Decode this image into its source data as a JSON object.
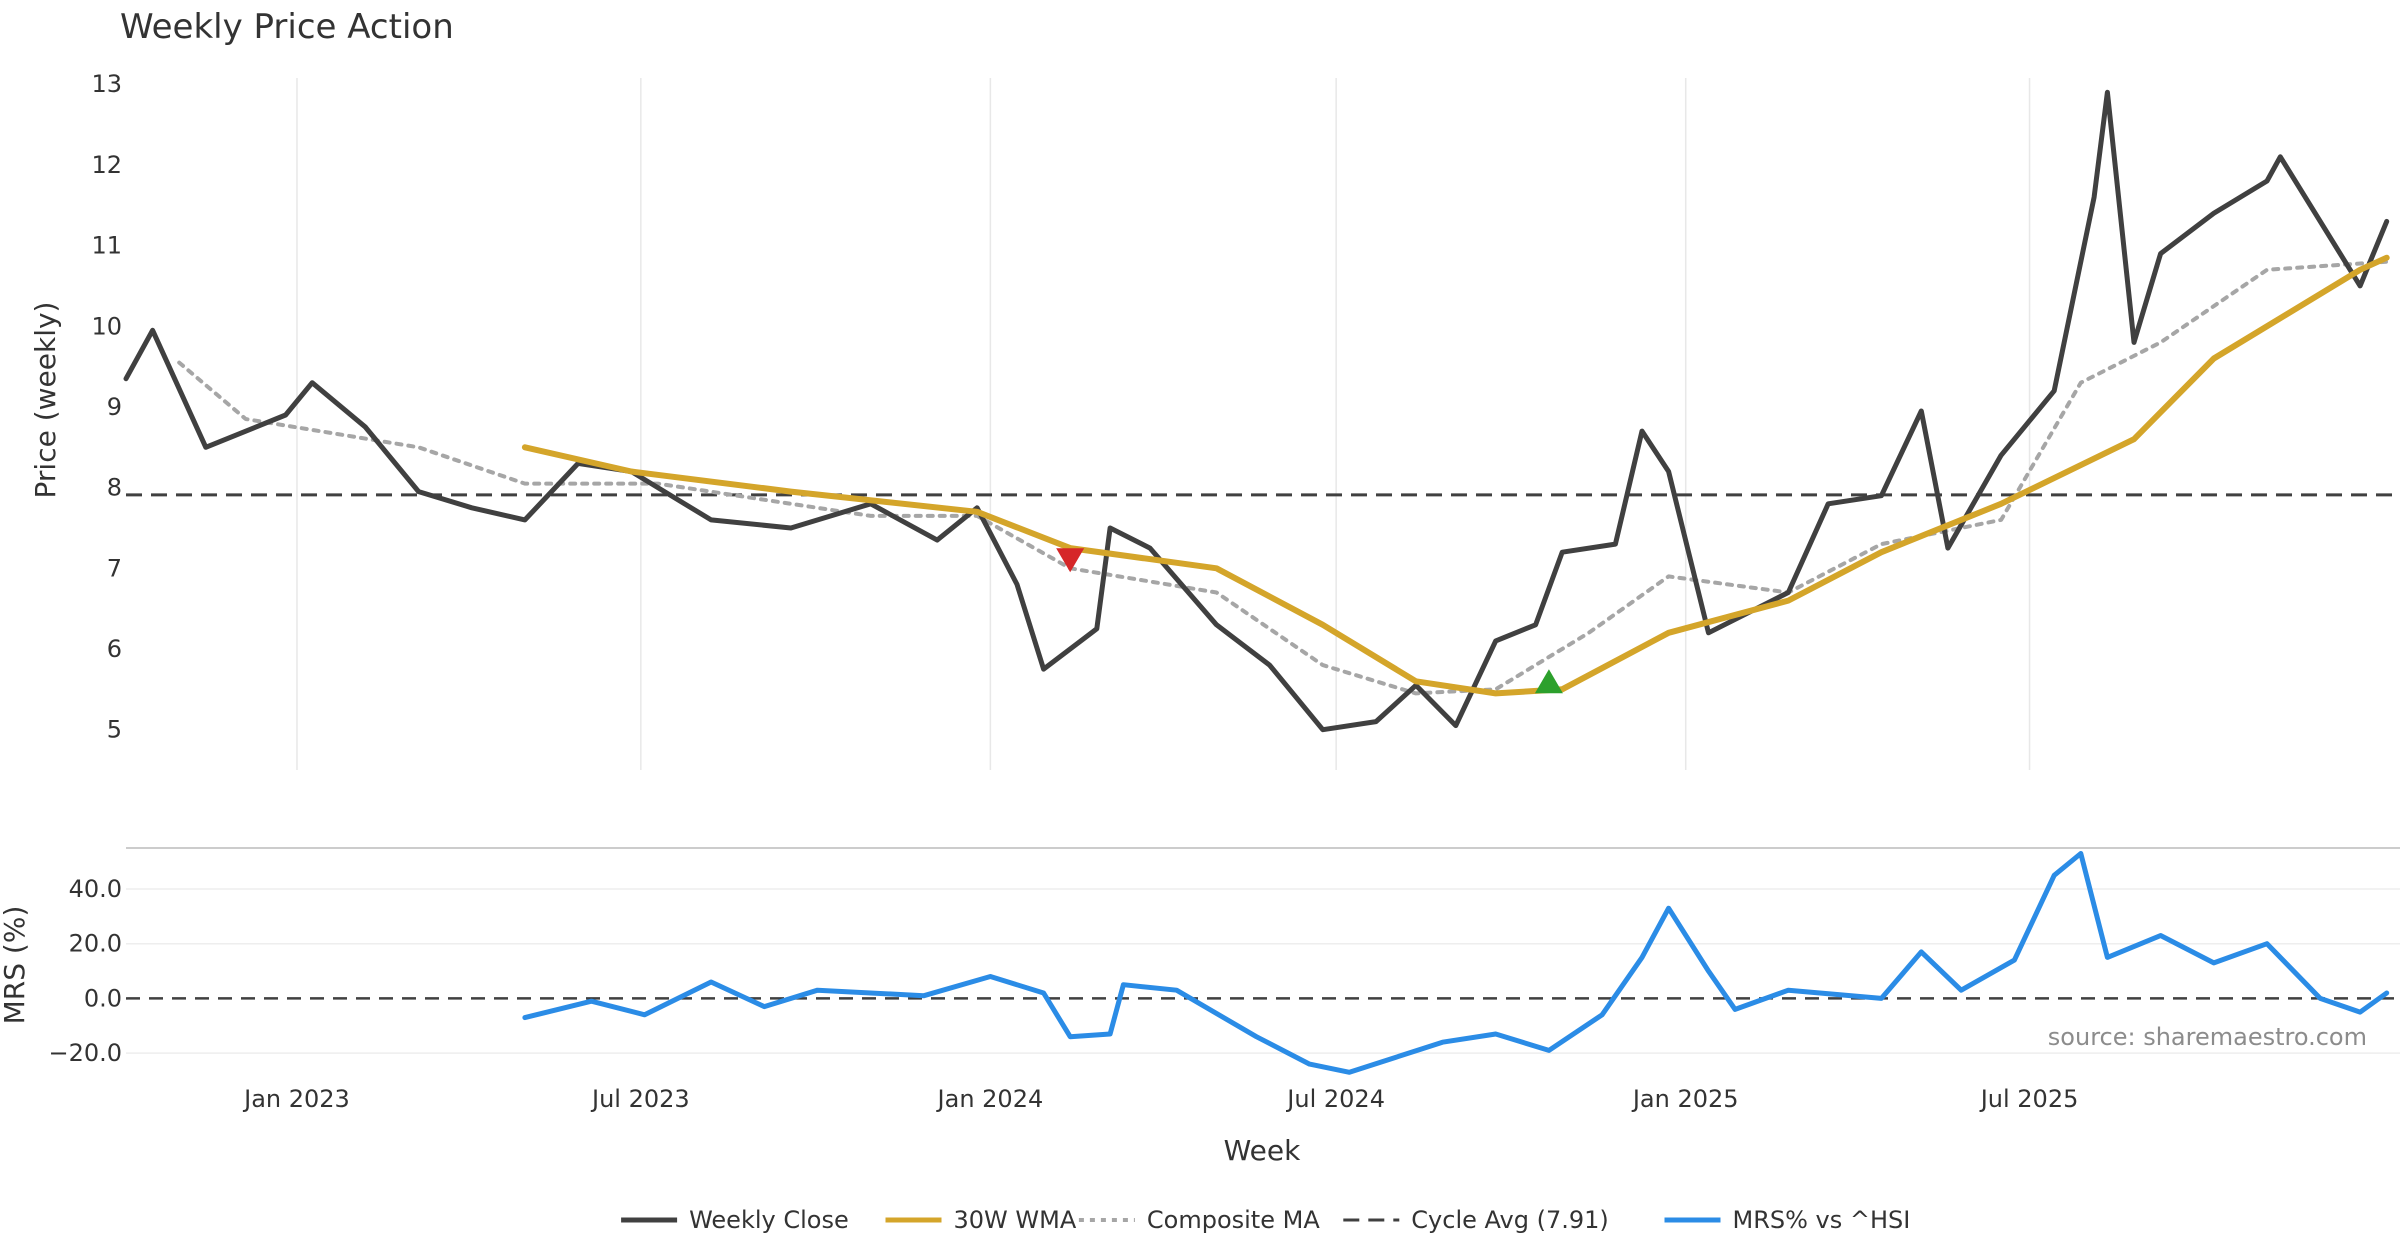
{
  "chart_data": [
    {
      "type": "line",
      "title": "Weekly Price Action",
      "xlabel": "",
      "ylabel": "Price (weekly)",
      "ylim": [
        4.5,
        13.3
      ],
      "yticks": [
        5,
        6,
        7,
        8,
        9,
        10,
        11,
        12,
        13
      ],
      "grid": "vertical",
      "reference_line": {
        "name": "Cycle Avg (7.91)",
        "value": 7.91
      },
      "markers": [
        {
          "type": "sell",
          "symbol": "down-triangle",
          "color": "#d62728",
          "date": "2024-02-12",
          "value": 7.1
        },
        {
          "type": "buy",
          "symbol": "up-triangle",
          "color": "#2ca02c",
          "date": "2024-10-21",
          "value": 5.6
        }
      ],
      "series": [
        {
          "name": "Weekly Close",
          "color": "#404040",
          "points": [
            [
              "2022-10-03",
              9.35
            ],
            [
              "2022-10-17",
              9.95
            ],
            [
              "2022-11-14",
              8.5
            ],
            [
              "2022-12-26",
              8.9
            ],
            [
              "2023-01-09",
              9.3
            ],
            [
              "2023-02-06",
              8.75
            ],
            [
              "2023-03-06",
              7.95
            ],
            [
              "2023-04-03",
              7.75
            ],
            [
              "2023-05-01",
              7.6
            ],
            [
              "2023-05-29",
              8.3
            ],
            [
              "2023-06-26",
              8.2
            ],
            [
              "2023-08-07",
              7.6
            ],
            [
              "2023-09-18",
              7.5
            ],
            [
              "2023-10-30",
              7.8
            ],
            [
              "2023-12-04",
              7.35
            ],
            [
              "2023-12-25",
              7.75
            ],
            [
              "2024-01-15",
              6.8
            ],
            [
              "2024-01-29",
              5.75
            ],
            [
              "2024-02-26",
              6.25
            ],
            [
              "2024-03-04",
              7.5
            ],
            [
              "2024-03-25",
              7.25
            ],
            [
              "2024-04-29",
              6.3
            ],
            [
              "2024-05-27",
              5.8
            ],
            [
              "2024-06-24",
              5.0
            ],
            [
              "2024-07-22",
              5.1
            ],
            [
              "2024-08-12",
              5.55
            ],
            [
              "2024-09-02",
              5.05
            ],
            [
              "2024-09-23",
              6.1
            ],
            [
              "2024-10-14",
              6.3
            ],
            [
              "2024-10-28",
              7.2
            ],
            [
              "2024-11-25",
              7.3
            ],
            [
              "2024-12-09",
              8.7
            ],
            [
              "2024-12-23",
              8.2
            ],
            [
              "2025-01-13",
              6.2
            ],
            [
              "2025-02-24",
              6.7
            ],
            [
              "2025-03-17",
              7.8
            ],
            [
              "2025-04-14",
              7.9
            ],
            [
              "2025-05-05",
              8.95
            ],
            [
              "2025-05-19",
              7.25
            ],
            [
              "2025-06-16",
              8.4
            ],
            [
              "2025-07-14",
              9.2
            ],
            [
              "2025-08-04",
              11.6
            ],
            [
              "2025-08-11",
              12.9
            ],
            [
              "2025-08-25",
              9.8
            ],
            [
              "2025-09-08",
              10.9
            ],
            [
              "2025-10-06",
              11.4
            ],
            [
              "2025-11-03",
              11.8
            ],
            [
              "2025-11-10",
              12.1
            ],
            [
              "2025-12-22",
              10.5
            ],
            [
              "2026-01-05",
              11.3
            ]
          ]
        },
        {
          "name": "30W WMA",
          "color": "#d4a52a",
          "points": [
            [
              "2023-05-01",
              8.5
            ],
            [
              "2023-06-26",
              8.2
            ],
            [
              "2023-09-18",
              7.95
            ],
            [
              "2023-12-25",
              7.7
            ],
            [
              "2024-02-12",
              7.25
            ],
            [
              "2024-04-29",
              7.0
            ],
            [
              "2024-06-24",
              6.3
            ],
            [
              "2024-08-12",
              5.6
            ],
            [
              "2024-09-23",
              5.45
            ],
            [
              "2024-10-28",
              5.5
            ],
            [
              "2024-12-23",
              6.2
            ],
            [
              "2025-02-24",
              6.6
            ],
            [
              "2025-04-14",
              7.2
            ],
            [
              "2025-06-16",
              7.8
            ],
            [
              "2025-08-25",
              8.6
            ],
            [
              "2025-10-06",
              9.6
            ],
            [
              "2025-12-22",
              10.7
            ],
            [
              "2026-01-05",
              10.85
            ]
          ]
        },
        {
          "name": "Composite MA",
          "color": "#a6a6a6",
          "points": [
            [
              "2022-10-31",
              9.55
            ],
            [
              "2022-12-05",
              8.85
            ],
            [
              "2023-03-06",
              8.5
            ],
            [
              "2023-05-01",
              8.05
            ],
            [
              "2023-07-10",
              8.05
            ],
            [
              "2023-10-30",
              7.65
            ],
            [
              "2023-12-25",
              7.65
            ],
            [
              "2024-02-12",
              7.0
            ],
            [
              "2024-04-29",
              6.7
            ],
            [
              "2024-06-24",
              5.8
            ],
            [
              "2024-08-12",
              5.45
            ],
            [
              "2024-09-23",
              5.5
            ],
            [
              "2024-11-11",
              6.2
            ],
            [
              "2024-12-23",
              6.9
            ],
            [
              "2025-02-24",
              6.7
            ],
            [
              "2025-04-14",
              7.3
            ],
            [
              "2025-06-16",
              7.6
            ],
            [
              "2025-07-28",
              9.3
            ],
            [
              "2025-09-08",
              9.8
            ],
            [
              "2025-11-03",
              10.7
            ],
            [
              "2026-01-05",
              10.8
            ]
          ]
        }
      ]
    },
    {
      "type": "line",
      "xlabel": "Week",
      "ylabel": "MRS (%)",
      "ylim": [
        -28,
        55
      ],
      "yticks": [
        -20.0,
        0.0,
        20.0,
        40.0
      ],
      "ytick_labels": [
        "−20.0",
        "0.0",
        "20.0",
        "40.0"
      ],
      "xticks": [
        "2023-01-01",
        "2023-07-01",
        "2024-01-01",
        "2024-07-01",
        "2025-01-01",
        "2025-07-01"
      ],
      "xtick_labels": [
        "Jan 2023",
        "Jul 2023",
        "Jan 2024",
        "Jul 2024",
        "Jan 2025",
        "Jul 2025"
      ],
      "reference_line": {
        "value": 0
      },
      "annotation": "source: sharemaestro.com",
      "series": [
        {
          "name": "MRS% vs ^HSI",
          "color": "#2b8ce6",
          "points": [
            [
              "2023-05-01",
              -7
            ],
            [
              "2023-06-05",
              -1
            ],
            [
              "2023-07-03",
              -6
            ],
            [
              "2023-08-07",
              6
            ],
            [
              "2023-09-04",
              -3
            ],
            [
              "2023-10-02",
              3
            ],
            [
              "2023-11-27",
              1
            ],
            [
              "2024-01-01",
              8
            ],
            [
              "2024-01-29",
              2
            ],
            [
              "2024-02-12",
              -14
            ],
            [
              "2024-03-04",
              -13
            ],
            [
              "2024-03-11",
              5
            ],
            [
              "2024-04-08",
              3
            ],
            [
              "2024-05-20",
              -14
            ],
            [
              "2024-06-17",
              -24
            ],
            [
              "2024-07-08",
              -27
            ],
            [
              "2024-08-26",
              -16
            ],
            [
              "2024-09-23",
              -13
            ],
            [
              "2024-10-21",
              -19
            ],
            [
              "2024-11-18",
              -6
            ],
            [
              "2024-12-09",
              15
            ],
            [
              "2024-12-23",
              33
            ],
            [
              "2025-01-13",
              10
            ],
            [
              "2025-01-27",
              -4
            ],
            [
              "2025-02-24",
              3
            ],
            [
              "2025-04-14",
              0
            ],
            [
              "2025-05-05",
              17
            ],
            [
              "2025-05-26",
              3
            ],
            [
              "2025-06-23",
              14
            ],
            [
              "2025-07-14",
              45
            ],
            [
              "2025-07-28",
              53
            ],
            [
              "2025-08-11",
              15
            ],
            [
              "2025-09-08",
              23
            ],
            [
              "2025-10-06",
              13
            ],
            [
              "2025-11-03",
              20
            ],
            [
              "2025-12-01",
              0
            ],
            [
              "2025-12-22",
              -5
            ],
            [
              "2026-01-05",
              2
            ]
          ]
        }
      ]
    }
  ],
  "legend": {
    "placement": "bottom-center",
    "items": [
      {
        "label": "Weekly Close",
        "color": "#404040",
        "style": "solid"
      },
      {
        "label": "30W WMA",
        "color": "#d4a52a",
        "style": "solid"
      },
      {
        "label": "Composite MA",
        "color": "#a6a6a6",
        "style": "dotted"
      },
      {
        "label": "Cycle Avg (7.91)",
        "color": "#404040",
        "style": "dashed"
      },
      {
        "label": "MRS% vs ^HSI",
        "color": "#2b8ce6",
        "style": "solid"
      }
    ]
  }
}
